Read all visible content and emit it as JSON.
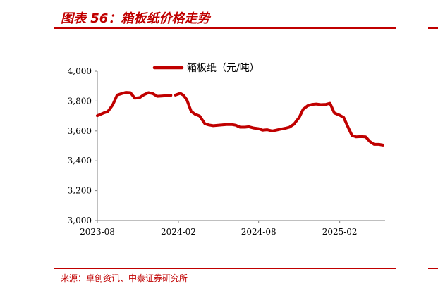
{
  "figure": {
    "title": "图表 56：箱板纸价格走势",
    "source": "来源：卓创资讯、中泰证券研究所"
  },
  "colors": {
    "accent": "#c00000",
    "axis": "#7f7f7f"
  },
  "chart_data": {
    "type": "line",
    "title": "",
    "xlabel": "",
    "ylabel": "",
    "ylim": [
      3000,
      4000
    ],
    "yticks": [
      "3,000",
      "3,200",
      "3,400",
      "3,600",
      "3,800",
      "4,000"
    ],
    "yticks_values": [
      3000,
      3200,
      3400,
      3600,
      3800,
      4000
    ],
    "xticks": [
      "2023-08",
      "2024-02",
      "2024-08",
      "2025-02"
    ],
    "xticks_values": [
      "2023-08-01",
      "2024-02-01",
      "2024-08-01",
      "2025-02-01"
    ],
    "xlim": [
      "2023-08-01",
      "2025-05-15"
    ],
    "grid": false,
    "legend_position": "top",
    "series": [
      {
        "name": "箱板纸（元/吨）",
        "color": "#c00000",
        "segments": [
          {
            "x": [
              "2023-08-01",
              "2023-08-15",
              "2023-08-25",
              "2023-09-05",
              "2023-09-15",
              "2023-09-25",
              "2023-10-05",
              "2023-10-15",
              "2023-10-25",
              "2023-11-05",
              "2023-11-15",
              "2023-11-25",
              "2023-12-05",
              "2023-12-15",
              "2023-12-25",
              "2024-01-05",
              "2024-01-15"
            ],
            "y": [
              3702,
              3720,
              3730,
              3775,
              3840,
              3850,
              3858,
              3856,
              3820,
              3823,
              3843,
              3856,
              3850,
              3832,
              3834,
              3836,
              3838
            ]
          },
          {
            "x": [
              "2024-01-25",
              "2024-02-05",
              "2024-02-12",
              "2024-02-20",
              "2024-03-01",
              "2024-03-10",
              "2024-03-20",
              "2024-04-01",
              "2024-04-10",
              "2024-04-20",
              "2024-05-01",
              "2024-05-10",
              "2024-05-20",
              "2024-06-01",
              "2024-06-10",
              "2024-06-20",
              "2024-07-01",
              "2024-07-10",
              "2024-07-20",
              "2024-08-01",
              "2024-08-10",
              "2024-08-20",
              "2024-09-01",
              "2024-09-10",
              "2024-09-20",
              "2024-10-01",
              "2024-10-10",
              "2024-10-20",
              "2024-11-01",
              "2024-11-10",
              "2024-11-20",
              "2024-12-01",
              "2024-12-10",
              "2024-12-20",
              "2025-01-01",
              "2025-01-10",
              "2025-01-20",
              "2025-02-01",
              "2025-02-10",
              "2025-02-20",
              "2025-03-01",
              "2025-03-10",
              "2025-03-20",
              "2025-04-01",
              "2025-04-10",
              "2025-04-20",
              "2025-05-01",
              "2025-05-10"
            ],
            "y": [
              3840,
              3852,
              3840,
              3810,
              3730,
              3712,
              3700,
              3648,
              3640,
              3635,
              3638,
              3640,
              3643,
              3643,
              3638,
              3625,
              3625,
              3628,
              3620,
              3615,
              3605,
              3608,
              3600,
              3605,
              3612,
              3618,
              3625,
              3645,
              3690,
              3745,
              3768,
              3778,
              3780,
              3776,
              3778,
              3785,
              3720,
              3705,
              3690,
              3625,
              3570,
              3560,
              3562,
              3560,
              3530,
              3510,
              3510,
              3505
            ]
          }
        ]
      }
    ]
  }
}
